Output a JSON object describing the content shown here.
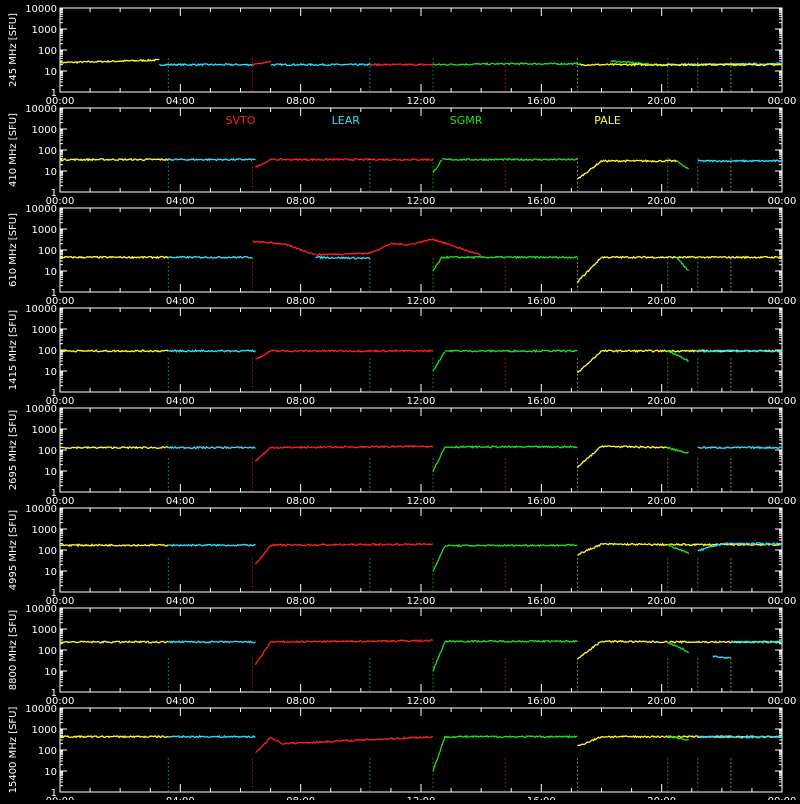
{
  "legend": {
    "stations": [
      {
        "name": "SVTO",
        "color": "#ff2020"
      },
      {
        "name": "LEAR",
        "color": "#30e0ff"
      },
      {
        "name": "SGMR",
        "color": "#20e020"
      },
      {
        "name": "PALE",
        "color": "#ffff30"
      }
    ]
  },
  "colors": {
    "background": "#000000",
    "axes": "#ffffff"
  },
  "chart_data": {
    "type": "line",
    "xlabel": "",
    "x_tick_labels": [
      "00:00",
      "04:00",
      "08:00",
      "12:00",
      "16:00",
      "20:00",
      "00:00"
    ],
    "xlim_hours": [
      0,
      24
    ],
    "y_scale": "log",
    "ylim": [
      1,
      10000
    ],
    "y_tick_labels": [
      "1",
      "10",
      "100",
      "1000",
      "10000"
    ],
    "panels": [
      {
        "ylabel": "245 MHz [SFU]",
        "segments": {
          "PALE": [
            [
              0,
              25,
              3.3,
              33
            ]
          ],
          "LEAR": [
            [
              3.3,
              20,
              6.4,
              20
            ],
            [
              7.0,
              20,
              10.3,
              20
            ],
            [
              20.2,
              20,
              24,
              22
            ]
          ],
          "SVTO": [
            [
              6.4,
              20,
              7.0,
              30
            ],
            [
              10.3,
              20,
              12.4,
              20
            ]
          ],
          "SGMR": [
            [
              12.4,
              20,
              14.8,
              22
            ],
            [
              14.8,
              22,
              17.3,
              22
            ],
            [
              18.3,
              30,
              20.2,
              18
            ]
          ],
          "PALE2": [
            [
              17.3,
              20,
              24,
              20
            ]
          ]
        }
      },
      {
        "ylabel": "410 MHz [SFU]",
        "segments": {
          "PALE": [
            [
              0,
              35,
              3.6,
              35
            ],
            [
              17.2,
              4,
              18.0,
              30
            ],
            [
              18.0,
              30,
              20.5,
              30
            ]
          ],
          "LEAR": [
            [
              3.6,
              35,
              6.5,
              35
            ],
            [
              21.2,
              30,
              24,
              30
            ]
          ],
          "SVTO": [
            [
              6.5,
              15,
              7.0,
              35
            ],
            [
              7.0,
              35,
              12.4,
              35
            ]
          ],
          "SGMR": [
            [
              12.4,
              8,
              12.7,
              35
            ],
            [
              12.7,
              35,
              17.2,
              35
            ],
            [
              20.5,
              30,
              20.9,
              12
            ]
          ]
        }
      },
      {
        "ylabel": "610 MHz [SFU]",
        "segments": {
          "PALE": [
            [
              0,
              45,
              3.6,
              45
            ],
            [
              17.2,
              3,
              18.0,
              45
            ],
            [
              18.0,
              45,
              24,
              45
            ]
          ],
          "LEAR": [
            [
              3.6,
              45,
              6.4,
              45
            ],
            [
              8.5,
              45,
              10.3,
              40
            ]
          ],
          "SVTO": [
            [
              6.4,
              250,
              7.4,
              200
            ],
            [
              7.4,
              200,
              8.5,
              60
            ],
            [
              8.5,
              60,
              10.3,
              70
            ],
            [
              10.3,
              70,
              11.0,
              200
            ],
            [
              11.0,
              200,
              11.6,
              180
            ],
            [
              11.6,
              180,
              12.4,
              330
            ],
            [
              12.4,
              330,
              14.0,
              55
            ]
          ],
          "SGMR": [
            [
              12.4,
              10,
              12.7,
              45
            ],
            [
              12.7,
              45,
              17.2,
              45
            ],
            [
              20.5,
              45,
              20.9,
              10
            ]
          ]
        }
      },
      {
        "ylabel": "1415 MHz [SFU]",
        "segments": {
          "PALE": [
            [
              0,
              90,
              3.6,
              90
            ],
            [
              17.2,
              8,
              18.0,
              90
            ],
            [
              18.0,
              90,
              24,
              90
            ]
          ],
          "LEAR": [
            [
              3.6,
              90,
              6.5,
              90
            ],
            [
              21.2,
              90,
              24,
              90
            ]
          ],
          "SVTO": [
            [
              6.5,
              35,
              7.0,
              90
            ],
            [
              7.0,
              90,
              12.4,
              90
            ]
          ],
          "SGMR": [
            [
              12.4,
              10,
              12.8,
              90
            ],
            [
              12.8,
              90,
              17.2,
              90
            ],
            [
              20.2,
              90,
              20.9,
              30
            ]
          ]
        }
      },
      {
        "ylabel": "2695 MHz [SFU]",
        "segments": {
          "PALE": [
            [
              0,
              130,
              3.6,
              130
            ],
            [
              17.2,
              15,
              18.0,
              150
            ],
            [
              18.0,
              150,
              20.2,
              130
            ]
          ],
          "LEAR": [
            [
              3.6,
              130,
              6.5,
              130
            ],
            [
              21.2,
              130,
              24,
              130
            ]
          ],
          "SVTO": [
            [
              6.5,
              30,
              7.0,
              130
            ],
            [
              7.0,
              130,
              12.4,
              150
            ]
          ],
          "SGMR": [
            [
              12.4,
              10,
              12.8,
              140
            ],
            [
              12.8,
              140,
              17.2,
              140
            ],
            [
              20.2,
              130,
              20.9,
              70
            ]
          ]
        }
      },
      {
        "ylabel": "4995 MHz [SFU]",
        "segments": {
          "PALE": [
            [
              0,
              170,
              3.6,
              170
            ],
            [
              17.2,
              60,
              18.0,
              190
            ],
            [
              18.0,
              190,
              20.2,
              180
            ],
            [
              20.2,
              180,
              24,
              180
            ]
          ],
          "LEAR": [
            [
              3.6,
              170,
              6.5,
              170
            ],
            [
              21.2,
              90,
              22.0,
              200
            ],
            [
              22.0,
              200,
              24,
              200
            ]
          ],
          "SVTO": [
            [
              6.5,
              20,
              7.0,
              170
            ],
            [
              7.0,
              170,
              12.4,
              190
            ]
          ],
          "SGMR": [
            [
              12.4,
              10,
              12.8,
              160
            ],
            [
              12.8,
              160,
              17.2,
              170
            ],
            [
              20.2,
              180,
              20.9,
              70
            ]
          ]
        }
      },
      {
        "ylabel": "8800 MHz [SFU]",
        "segments": {
          "PALE": [
            [
              0,
              240,
              3.6,
              240
            ],
            [
              17.2,
              40,
              18.0,
              260
            ],
            [
              18.0,
              260,
              20.2,
              240
            ],
            [
              20.2,
              240,
              24,
              240
            ]
          ],
          "LEAR": [
            [
              3.6,
              240,
              6.5,
              240
            ],
            [
              21.7,
              50,
              22.3,
              40
            ],
            [
              22.3,
              240,
              24,
              240
            ]
          ],
          "SVTO": [
            [
              6.5,
              20,
              7.0,
              240
            ],
            [
              7.0,
              240,
              12.4,
              280
            ]
          ],
          "SGMR": [
            [
              12.4,
              10,
              12.8,
              260
            ],
            [
              12.8,
              260,
              17.2,
              260
            ],
            [
              20.2,
              240,
              20.9,
              80
            ]
          ]
        }
      },
      {
        "ylabel": "15400 MHz [SFU]",
        "segments": {
          "PALE": [
            [
              0,
              430,
              3.6,
              430
            ],
            [
              17.2,
              150,
              18.0,
              430
            ],
            [
              18.0,
              430,
              24,
              430
            ]
          ],
          "LEAR": [
            [
              3.6,
              430,
              6.5,
              430
            ],
            [
              21.2,
              430,
              22.5,
              400
            ],
            [
              22.5,
              400,
              24,
              430
            ]
          ],
          "SVTO": [
            [
              6.5,
              70,
              7.0,
              400
            ],
            [
              7.0,
              400,
              7.4,
              200
            ],
            [
              7.4,
              200,
              12.4,
              430
            ]
          ],
          "SGMR": [
            [
              12.4,
              10,
              12.8,
              430
            ],
            [
              12.8,
              430,
              17.2,
              430
            ],
            [
              20.2,
              430,
              20.9,
              300
            ]
          ]
        }
      }
    ]
  }
}
